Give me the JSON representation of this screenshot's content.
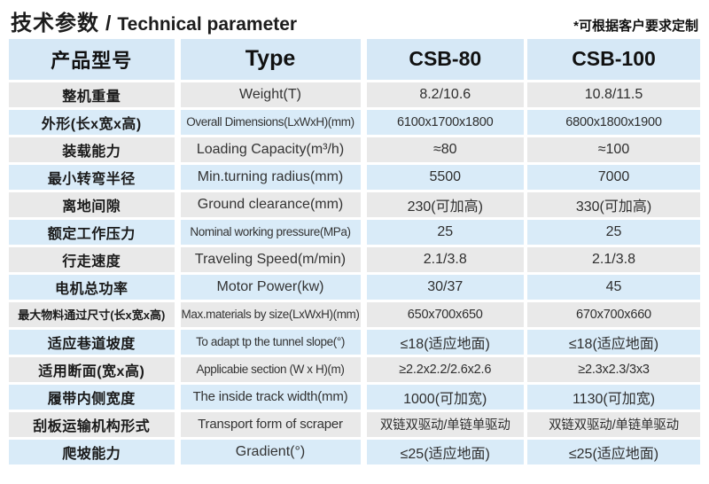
{
  "title": {
    "cn": "技术参数",
    "sep": "/",
    "en": "Technical parameter"
  },
  "note": "*可根据客户要求定制",
  "colors": {
    "row_gray": "#e9e9e9",
    "row_blue": "#d9ebf8",
    "header_blue": "#d6e8f6",
    "text": "#222222",
    "background": "#ffffff"
  },
  "table": {
    "headers": {
      "model": "产品型号",
      "type": "Type",
      "col1": "CSB-80",
      "col2": "CSB-100"
    },
    "rows": [
      {
        "cn": "整机重量",
        "en": "Weight(T)",
        "csb80": "8.2/10.6",
        "csb100": "10.8/11.5"
      },
      {
        "cn": "外形(长x宽x高)",
        "en": "Overall Dimensions(LxWxH)(mm)",
        "csb80": "6100x1700x1800",
        "csb100": "6800x1800x1900"
      },
      {
        "cn": "装载能力",
        "en": "Loading Capacity(m³/h)",
        "csb80": "≈80",
        "csb100": "≈100"
      },
      {
        "cn": "最小转弯半径",
        "en": "Min.turning radius(mm)",
        "csb80": "5500",
        "csb100": "7000"
      },
      {
        "cn": "离地间隙",
        "en": "Ground clearance(mm)",
        "csb80": "230(可加高)",
        "csb100": "330(可加高)"
      },
      {
        "cn": "额定工作压力",
        "en": "Nominal working pressure(MPa)",
        "csb80": "25",
        "csb100": "25"
      },
      {
        "cn": "行走速度",
        "en": "Traveling Speed(m/min)",
        "csb80": "2.1/3.8",
        "csb100": "2.1/3.8"
      },
      {
        "cn": "电机总功率",
        "en": "Motor Power(kw)",
        "csb80": "30/37",
        "csb100": "45"
      },
      {
        "cn": "最大物料通过尺寸(长x宽x高)",
        "en": "Max.materials by size(LxWxH)(mm)",
        "csb80": "650x700x650",
        "csb100": "670x700x660"
      },
      {
        "cn": "适应巷道坡度",
        "en": "To adapt tp the tunnel slope(°)",
        "csb80": "≤18(适应地面)",
        "csb100": "≤18(适应地面)"
      },
      {
        "cn": "适用断面(宽x高)",
        "en": "Applicabie section (W x H)(m)",
        "csb80": "≥2.2x2.2/2.6x2.6",
        "csb100": "≥2.3x2.3/3x3"
      },
      {
        "cn": "履带内侧宽度",
        "en": "The inside track width(mm)",
        "csb80": "1000(可加宽)",
        "csb100": "1130(可加宽)"
      },
      {
        "cn": "刮板运输机构形式",
        "en": "Transport form of scraper",
        "csb80": "双链双驱动/单链单驱动",
        "csb100": "双链双驱动/单链单驱动"
      },
      {
        "cn": "爬坡能力",
        "en": "Gradient(°)",
        "csb80": "≤25(适应地面)",
        "csb100": "≤25(适应地面)"
      }
    ]
  }
}
